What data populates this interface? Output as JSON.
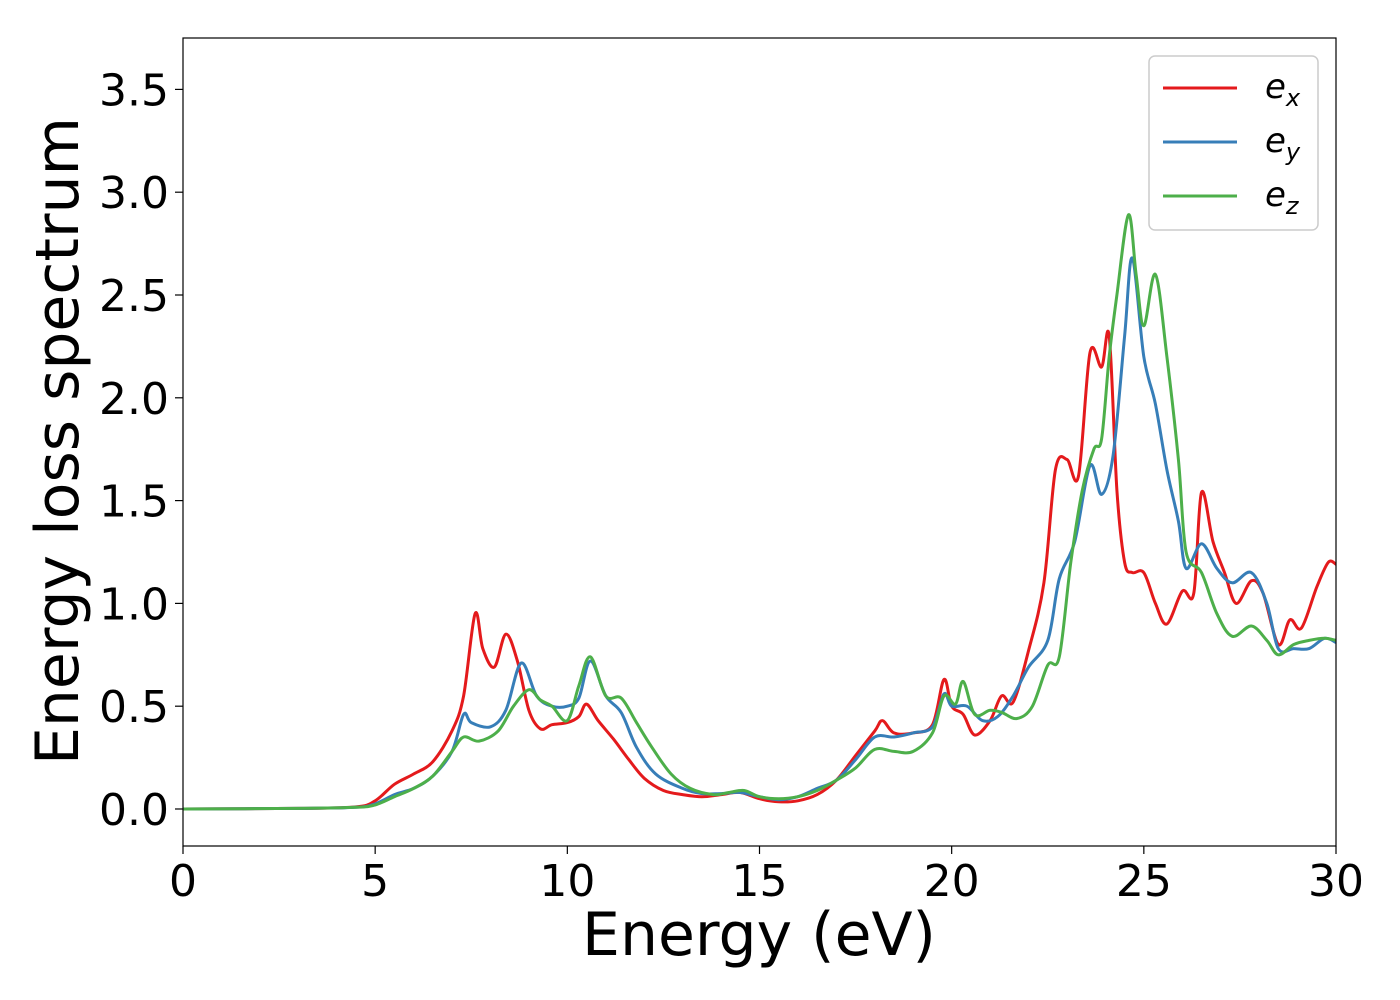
{
  "chart_data": {
    "type": "line",
    "title": "",
    "xlabel": "Energy (eV)",
    "ylabel": "Energy loss spectrum",
    "xlim": [
      0,
      30
    ],
    "ylim": [
      -0.18,
      3.75
    ],
    "xticks": [
      "0",
      "5",
      "10",
      "15",
      "20",
      "25",
      "30"
    ],
    "yticks": [
      "0.0",
      "0.5",
      "1.0",
      "1.5",
      "2.0",
      "2.5",
      "3.0",
      "3.5"
    ],
    "grid": false,
    "legend_position": "top-right",
    "series": [
      {
        "name": "e",
        "subscript": "x",
        "color": "#e41a1c",
        "points": [
          [
            0,
            0
          ],
          [
            3,
            0.003
          ],
          [
            4.5,
            0.01
          ],
          [
            5,
            0.04
          ],
          [
            5.5,
            0.12
          ],
          [
            6,
            0.17
          ],
          [
            6.5,
            0.23
          ],
          [
            7,
            0.38
          ],
          [
            7.3,
            0.55
          ],
          [
            7.6,
            0.95
          ],
          [
            7.8,
            0.78
          ],
          [
            8.1,
            0.69
          ],
          [
            8.4,
            0.85
          ],
          [
            8.7,
            0.72
          ],
          [
            9,
            0.48
          ],
          [
            9.3,
            0.39
          ],
          [
            9.6,
            0.41
          ],
          [
            10,
            0.42
          ],
          [
            10.3,
            0.45
          ],
          [
            10.5,
            0.51
          ],
          [
            10.8,
            0.43
          ],
          [
            11.2,
            0.34
          ],
          [
            11.6,
            0.24
          ],
          [
            12,
            0.15
          ],
          [
            12.5,
            0.09
          ],
          [
            13,
            0.07
          ],
          [
            13.5,
            0.06
          ],
          [
            14,
            0.07
          ],
          [
            14.5,
            0.08
          ],
          [
            15,
            0.05
          ],
          [
            15.5,
            0.035
          ],
          [
            16,
            0.04
          ],
          [
            16.5,
            0.07
          ],
          [
            17,
            0.14
          ],
          [
            17.5,
            0.26
          ],
          [
            18,
            0.38
          ],
          [
            18.2,
            0.43
          ],
          [
            18.5,
            0.37
          ],
          [
            19,
            0.37
          ],
          [
            19.5,
            0.41
          ],
          [
            19.8,
            0.63
          ],
          [
            20,
            0.5
          ],
          [
            20.3,
            0.46
          ],
          [
            20.6,
            0.36
          ],
          [
            21,
            0.43
          ],
          [
            21.3,
            0.55
          ],
          [
            21.6,
            0.52
          ],
          [
            22,
            0.77
          ],
          [
            22.4,
            1.1
          ],
          [
            22.7,
            1.65
          ],
          [
            23,
            1.7
          ],
          [
            23.3,
            1.62
          ],
          [
            23.6,
            2.22
          ],
          [
            23.9,
            2.15
          ],
          [
            24.1,
            2.3
          ],
          [
            24.3,
            1.55
          ],
          [
            24.5,
            1.2
          ],
          [
            24.7,
            1.15
          ],
          [
            25,
            1.15
          ],
          [
            25.3,
            1.0
          ],
          [
            25.6,
            0.9
          ],
          [
            26,
            1.06
          ],
          [
            26.3,
            1.05
          ],
          [
            26.5,
            1.54
          ],
          [
            26.8,
            1.3
          ],
          [
            27.1,
            1.15
          ],
          [
            27.4,
            1.0
          ],
          [
            27.8,
            1.11
          ],
          [
            28.1,
            1.05
          ],
          [
            28.5,
            0.8
          ],
          [
            28.8,
            0.92
          ],
          [
            29.1,
            0.88
          ],
          [
            29.5,
            1.08
          ],
          [
            29.8,
            1.2
          ],
          [
            30,
            1.19
          ]
        ]
      },
      {
        "name": "e",
        "subscript": "y",
        "color": "#377eb8",
        "points": [
          [
            0,
            0
          ],
          [
            3,
            0.003
          ],
          [
            4.5,
            0.008
          ],
          [
            5,
            0.025
          ],
          [
            5.5,
            0.07
          ],
          [
            6,
            0.1
          ],
          [
            6.5,
            0.16
          ],
          [
            7,
            0.28
          ],
          [
            7.3,
            0.46
          ],
          [
            7.5,
            0.42
          ],
          [
            8,
            0.4
          ],
          [
            8.4,
            0.48
          ],
          [
            8.8,
            0.71
          ],
          [
            9.2,
            0.55
          ],
          [
            9.6,
            0.5
          ],
          [
            10,
            0.5
          ],
          [
            10.3,
            0.54
          ],
          [
            10.6,
            0.72
          ],
          [
            11,
            0.55
          ],
          [
            11.4,
            0.47
          ],
          [
            11.8,
            0.3
          ],
          [
            12.3,
            0.17
          ],
          [
            13,
            0.1
          ],
          [
            13.5,
            0.075
          ],
          [
            14,
            0.075
          ],
          [
            14.5,
            0.08
          ],
          [
            15,
            0.06
          ],
          [
            15.5,
            0.045
          ],
          [
            16,
            0.06
          ],
          [
            16.5,
            0.1
          ],
          [
            17,
            0.14
          ],
          [
            17.5,
            0.24
          ],
          [
            18,
            0.35
          ],
          [
            18.5,
            0.35
          ],
          [
            19,
            0.37
          ],
          [
            19.5,
            0.4
          ],
          [
            19.8,
            0.56
          ],
          [
            20,
            0.5
          ],
          [
            20.4,
            0.5
          ],
          [
            20.8,
            0.43
          ],
          [
            21.2,
            0.45
          ],
          [
            21.6,
            0.55
          ],
          [
            22,
            0.69
          ],
          [
            22.5,
            0.82
          ],
          [
            22.8,
            1.12
          ],
          [
            23.2,
            1.3
          ],
          [
            23.6,
            1.67
          ],
          [
            23.9,
            1.53
          ],
          [
            24.2,
            1.72
          ],
          [
            24.5,
            2.3
          ],
          [
            24.7,
            2.68
          ],
          [
            25,
            2.2
          ],
          [
            25.3,
            1.97
          ],
          [
            25.6,
            1.65
          ],
          [
            25.9,
            1.4
          ],
          [
            26.1,
            1.17
          ],
          [
            26.5,
            1.29
          ],
          [
            26.9,
            1.17
          ],
          [
            27.3,
            1.1
          ],
          [
            27.8,
            1.15
          ],
          [
            28.2,
            1.0
          ],
          [
            28.5,
            0.78
          ],
          [
            28.9,
            0.78
          ],
          [
            29.3,
            0.78
          ],
          [
            29.7,
            0.83
          ],
          [
            30,
            0.81
          ]
        ]
      },
      {
        "name": "e",
        "subscript": "z",
        "color": "#4daf4a",
        "points": [
          [
            0,
            0
          ],
          [
            3,
            0.003
          ],
          [
            4.5,
            0.008
          ],
          [
            5,
            0.02
          ],
          [
            5.5,
            0.06
          ],
          [
            6,
            0.1
          ],
          [
            6.5,
            0.16
          ],
          [
            7,
            0.28
          ],
          [
            7.3,
            0.35
          ],
          [
            7.7,
            0.33
          ],
          [
            8.2,
            0.38
          ],
          [
            8.6,
            0.5
          ],
          [
            9,
            0.58
          ],
          [
            9.3,
            0.53
          ],
          [
            9.6,
            0.5
          ],
          [
            10,
            0.43
          ],
          [
            10.3,
            0.6
          ],
          [
            10.6,
            0.74
          ],
          [
            11,
            0.55
          ],
          [
            11.4,
            0.54
          ],
          [
            11.8,
            0.42
          ],
          [
            12.2,
            0.3
          ],
          [
            12.7,
            0.17
          ],
          [
            13.2,
            0.1
          ],
          [
            13.8,
            0.07
          ],
          [
            14.2,
            0.08
          ],
          [
            14.6,
            0.09
          ],
          [
            15,
            0.06
          ],
          [
            15.5,
            0.05
          ],
          [
            16,
            0.06
          ],
          [
            16.5,
            0.09
          ],
          [
            17,
            0.14
          ],
          [
            17.5,
            0.2
          ],
          [
            18,
            0.29
          ],
          [
            18.5,
            0.28
          ],
          [
            19,
            0.28
          ],
          [
            19.5,
            0.37
          ],
          [
            19.8,
            0.55
          ],
          [
            20.1,
            0.51
          ],
          [
            20.3,
            0.62
          ],
          [
            20.6,
            0.46
          ],
          [
            21,
            0.48
          ],
          [
            21.3,
            0.47
          ],
          [
            21.7,
            0.44
          ],
          [
            22.1,
            0.5
          ],
          [
            22.5,
            0.7
          ],
          [
            22.8,
            0.74
          ],
          [
            23.1,
            1.2
          ],
          [
            23.4,
            1.55
          ],
          [
            23.7,
            1.75
          ],
          [
            23.9,
            1.8
          ],
          [
            24.1,
            2.2
          ],
          [
            24.3,
            2.5
          ],
          [
            24.6,
            2.89
          ],
          [
            24.8,
            2.6
          ],
          [
            25,
            2.35
          ],
          [
            25.3,
            2.6
          ],
          [
            25.6,
            2.2
          ],
          [
            25.9,
            1.7
          ],
          [
            26.1,
            1.25
          ],
          [
            26.5,
            1.15
          ],
          [
            26.9,
            0.95
          ],
          [
            27.3,
            0.84
          ],
          [
            27.8,
            0.89
          ],
          [
            28.2,
            0.82
          ],
          [
            28.5,
            0.75
          ],
          [
            28.9,
            0.8
          ],
          [
            29.3,
            0.82
          ],
          [
            29.7,
            0.83
          ],
          [
            30,
            0.82
          ]
        ]
      }
    ]
  }
}
